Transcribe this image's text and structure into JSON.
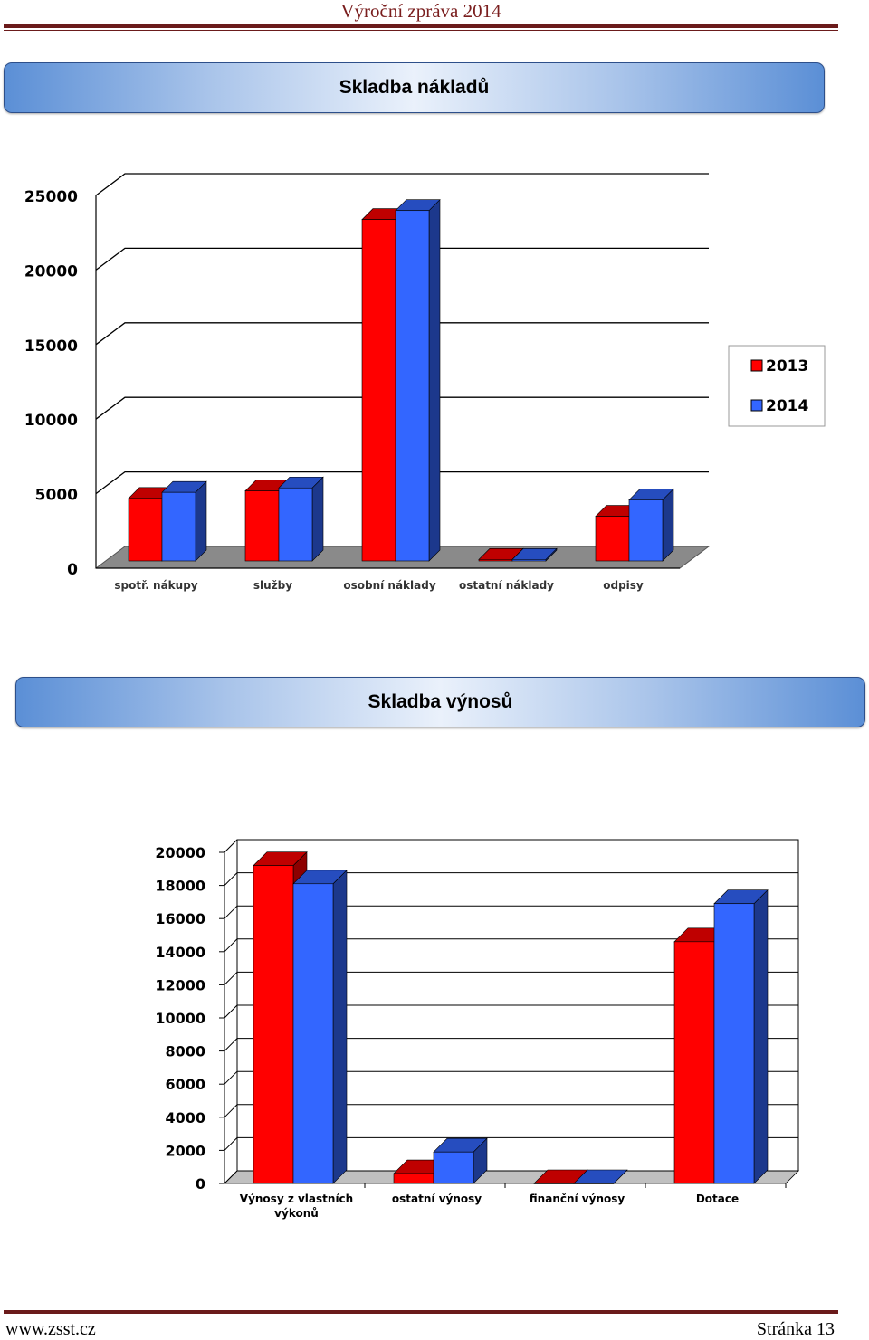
{
  "header": {
    "title": "Výroční zpráva 2014"
  },
  "sections": [
    {
      "title": "Skladba nákladů"
    },
    {
      "title": "Skladba výnosů"
    }
  ],
  "colors": {
    "series_2013": "#ff0000",
    "series_2014": "#3366ff"
  },
  "chart_data": [
    {
      "type": "bar",
      "three_d": true,
      "categories": [
        "spotř. nákupy",
        "služby",
        "osobní náklady",
        "ostatní náklady",
        "odpisy"
      ],
      "series": [
        {
          "name": "2013",
          "values": [
            4200,
            4700,
            22900,
            100,
            3000
          ]
        },
        {
          "name": "2014",
          "values": [
            4600,
            4900,
            23500,
            100,
            4100
          ]
        }
      ],
      "ylim": [
        0,
        25000
      ],
      "yticks": [
        0,
        5000,
        10000,
        15000,
        20000,
        25000
      ],
      "grid": true,
      "legend": "right"
    },
    {
      "type": "bar",
      "three_d": true,
      "categories": [
        "Výnosy z vlastních výkonů",
        "ostatní výnosy",
        "finanční výnosy",
        "Dotace"
      ],
      "series": [
        {
          "values": [
            19200,
            600,
            0,
            14600
          ]
        },
        {
          "values": [
            18100,
            1900,
            0,
            16900
          ]
        }
      ],
      "ylim": [
        0,
        20000
      ],
      "yticks": [
        0,
        2000,
        4000,
        6000,
        8000,
        10000,
        12000,
        14000,
        16000,
        18000,
        20000
      ],
      "grid": true,
      "legend": "none"
    }
  ],
  "footer": {
    "website": "www.zsst.cz",
    "page": "Stránka 13"
  }
}
